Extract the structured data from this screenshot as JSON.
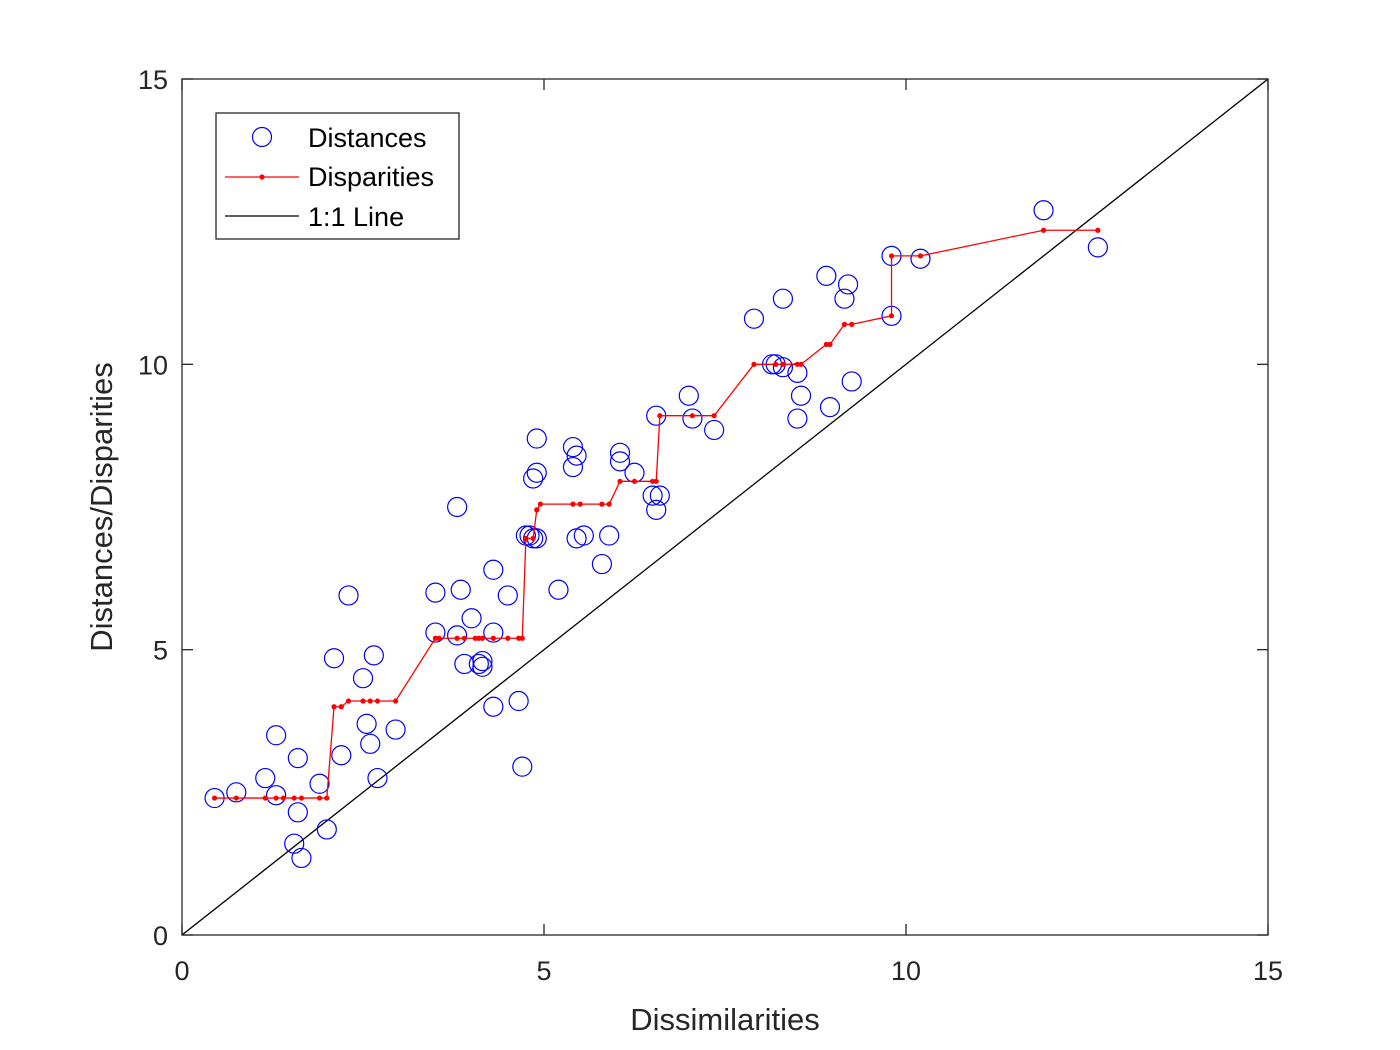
{
  "chart_data": {
    "type": "scatter",
    "xlabel": "Dissimilarities",
    "ylabel": "Distances/Disparities",
    "xlim": [
      0,
      15
    ],
    "ylim": [
      0,
      15
    ],
    "xticks": [
      0,
      5,
      10,
      15
    ],
    "yticks": [
      0,
      5,
      10,
      15
    ],
    "grid": false,
    "legend_position": "top-left",
    "series": [
      {
        "name": "Distances",
        "kind": "markers",
        "marker": "circle",
        "color": "#0000ff",
        "points": [
          [
            0.45,
            2.4
          ],
          [
            0.75,
            2.5
          ],
          [
            1.15,
            2.75
          ],
          [
            1.3,
            3.5
          ],
          [
            1.3,
            2.45
          ],
          [
            1.55,
            1.6
          ],
          [
            1.6,
            3.1
          ],
          [
            1.6,
            2.15
          ],
          [
            1.65,
            1.35
          ],
          [
            1.9,
            2.65
          ],
          [
            2.0,
            1.85
          ],
          [
            2.1,
            4.85
          ],
          [
            2.2,
            3.15
          ],
          [
            2.3,
            5.95
          ],
          [
            2.5,
            4.5
          ],
          [
            2.55,
            3.7
          ],
          [
            2.6,
            3.35
          ],
          [
            2.65,
            4.9
          ],
          [
            2.7,
            2.75
          ],
          [
            2.95,
            3.6
          ],
          [
            3.5,
            5.3
          ],
          [
            3.5,
            6.0
          ],
          [
            3.8,
            7.5
          ],
          [
            3.8,
            5.25
          ],
          [
            3.85,
            6.05
          ],
          [
            3.9,
            4.75
          ],
          [
            4.0,
            5.55
          ],
          [
            4.1,
            4.75
          ],
          [
            4.15,
            4.7
          ],
          [
            4.15,
            4.8
          ],
          [
            4.3,
            5.3
          ],
          [
            4.3,
            6.4
          ],
          [
            4.3,
            4.0
          ],
          [
            4.5,
            5.95
          ],
          [
            4.65,
            4.1
          ],
          [
            4.7,
            2.95
          ],
          [
            4.75,
            7.0
          ],
          [
            4.8,
            7.0
          ],
          [
            4.85,
            8.0
          ],
          [
            4.85,
            6.95
          ],
          [
            4.9,
            8.7
          ],
          [
            4.9,
            8.1
          ],
          [
            4.9,
            6.95
          ],
          [
            5.2,
            6.05
          ],
          [
            5.4,
            8.55
          ],
          [
            5.4,
            8.2
          ],
          [
            5.45,
            8.4
          ],
          [
            5.45,
            6.95
          ],
          [
            5.55,
            7.0
          ],
          [
            5.8,
            6.5
          ],
          [
            5.9,
            7.0
          ],
          [
            6.05,
            8.45
          ],
          [
            6.05,
            8.3
          ],
          [
            6.25,
            8.1
          ],
          [
            6.5,
            7.7
          ],
          [
            6.55,
            9.1
          ],
          [
            6.55,
            7.45
          ],
          [
            6.6,
            7.7
          ],
          [
            7.0,
            9.45
          ],
          [
            7.05,
            9.05
          ],
          [
            7.35,
            8.85
          ],
          [
            7.9,
            10.8
          ],
          [
            8.15,
            10.0
          ],
          [
            8.2,
            10.0
          ],
          [
            8.3,
            11.15
          ],
          [
            8.3,
            9.95
          ],
          [
            8.5,
            9.85
          ],
          [
            8.5,
            9.05
          ],
          [
            8.55,
            9.45
          ],
          [
            8.9,
            11.55
          ],
          [
            8.95,
            9.25
          ],
          [
            9.15,
            11.15
          ],
          [
            9.2,
            11.4
          ],
          [
            9.25,
            9.7
          ],
          [
            9.8,
            11.9
          ],
          [
            9.8,
            10.85
          ],
          [
            10.2,
            11.85
          ],
          [
            11.9,
            12.7
          ],
          [
            12.65,
            12.05
          ]
        ]
      },
      {
        "name": "Disparities",
        "kind": "line-markers",
        "marker": "dot",
        "color": "#ff0000",
        "points": [
          [
            0.45,
            2.4
          ],
          [
            0.75,
            2.4
          ],
          [
            1.15,
            2.4
          ],
          [
            1.3,
            2.4
          ],
          [
            1.4,
            2.4
          ],
          [
            1.55,
            2.4
          ],
          [
            1.65,
            2.4
          ],
          [
            1.9,
            2.4
          ],
          [
            2.0,
            2.4
          ],
          [
            2.1,
            4.0
          ],
          [
            2.2,
            4.0
          ],
          [
            2.3,
            4.1
          ],
          [
            2.5,
            4.1
          ],
          [
            2.6,
            4.1
          ],
          [
            2.7,
            4.1
          ],
          [
            2.95,
            4.1
          ],
          [
            3.5,
            5.2
          ],
          [
            3.55,
            5.2
          ],
          [
            3.8,
            5.2
          ],
          [
            3.9,
            5.2
          ],
          [
            4.05,
            5.2
          ],
          [
            4.1,
            5.2
          ],
          [
            4.15,
            5.2
          ],
          [
            4.3,
            5.2
          ],
          [
            4.5,
            5.2
          ],
          [
            4.65,
            5.2
          ],
          [
            4.7,
            5.2
          ],
          [
            4.75,
            6.95
          ],
          [
            4.85,
            6.95
          ],
          [
            4.9,
            7.45
          ],
          [
            4.95,
            7.55
          ],
          [
            5.4,
            7.55
          ],
          [
            5.5,
            7.55
          ],
          [
            5.8,
            7.55
          ],
          [
            5.9,
            7.55
          ],
          [
            6.05,
            7.95
          ],
          [
            6.25,
            7.95
          ],
          [
            6.5,
            7.95
          ],
          [
            6.55,
            7.95
          ],
          [
            6.6,
            9.1
          ],
          [
            7.05,
            9.1
          ],
          [
            7.35,
            9.1
          ],
          [
            7.9,
            10.0
          ],
          [
            8.2,
            10.0
          ],
          [
            8.3,
            10.0
          ],
          [
            8.5,
            10.0
          ],
          [
            8.55,
            10.0
          ],
          [
            8.9,
            10.35
          ],
          [
            8.95,
            10.35
          ],
          [
            9.15,
            10.7
          ],
          [
            9.25,
            10.7
          ],
          [
            9.8,
            10.85
          ],
          [
            9.8,
            11.9
          ],
          [
            10.2,
            11.9
          ],
          [
            11.9,
            12.35
          ],
          [
            12.65,
            12.35
          ]
        ]
      },
      {
        "name": "1:1 Line",
        "kind": "line",
        "color": "#000000",
        "points": [
          [
            0,
            0
          ],
          [
            15,
            15
          ]
        ]
      }
    ]
  }
}
